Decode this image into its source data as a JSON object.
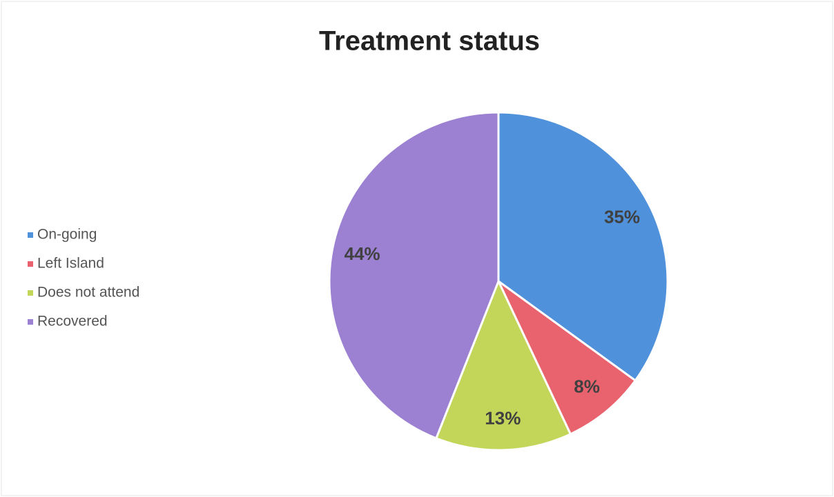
{
  "chart_data": {
    "type": "pie",
    "title": "Treatment status",
    "categories": [
      "On-going",
      "Left Island",
      "Does not attend",
      "Recovered"
    ],
    "values": [
      35,
      8,
      13,
      44
    ],
    "value_labels": [
      "35%",
      "8%",
      "13%",
      "44%"
    ],
    "colors": [
      "#4f92db",
      "#e8636e",
      "#c3d65a",
      "#9c80d2"
    ],
    "legend": "left"
  }
}
